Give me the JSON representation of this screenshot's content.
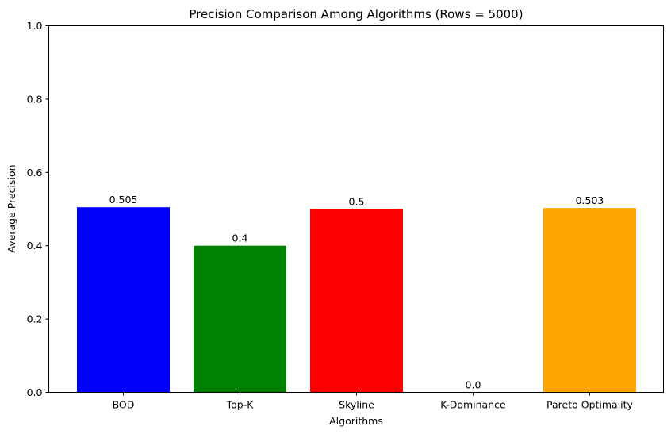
{
  "chart_data": {
    "type": "bar",
    "title": "Precision Comparison Among Algorithms (Rows = 5000)",
    "xlabel": "Algorithms",
    "ylabel": "Average Precision",
    "ylim": [
      0,
      1
    ],
    "yticks": [
      "0.0",
      "0.2",
      "0.4",
      "0.6",
      "0.8",
      "1.0"
    ],
    "categories": [
      "BOD",
      "Top-K",
      "Skyline",
      "K-Dominance",
      "Pareto Optimality"
    ],
    "values": [
      0.505,
      0.4,
      0.5,
      0.0,
      0.503
    ],
    "value_labels": [
      "0.505",
      "0.4",
      "0.5",
      "0.0",
      "0.503"
    ],
    "colors": [
      "#0000ff",
      "#008000",
      "#ff0000",
      "#800080",
      "#ffa500"
    ],
    "grid": false,
    "legend": "none"
  }
}
